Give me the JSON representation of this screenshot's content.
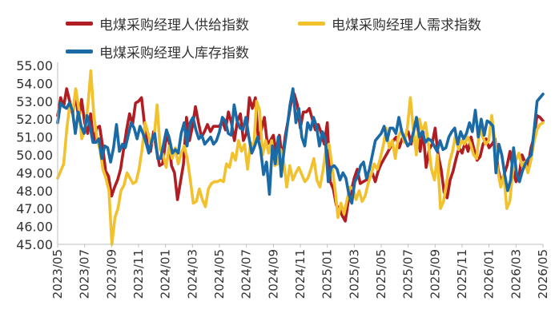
{
  "chart_data": {
    "type": "line",
    "title": "",
    "xlabel": "",
    "ylabel": "",
    "ylim": [
      45.0,
      55.0
    ],
    "yticks": [
      "45.00",
      "46.00",
      "47.00",
      "48.00",
      "49.00",
      "50.00",
      "51.00",
      "52.00",
      "53.00",
      "54.00",
      "55.00"
    ],
    "x_start": "2023-05",
    "x_end": "2026-05",
    "xticks": [
      "2023/05",
      "2023/07",
      "2023/09",
      "2023/11",
      "2024/01",
      "2024/03",
      "2024/05",
      "2024/07",
      "2024/09",
      "2024/11",
      "2025/01",
      "2025/03",
      "2025/05",
      "2025/07",
      "2025/09",
      "2025/11",
      "2026/01",
      "2026/03",
      "2026/05"
    ],
    "grid": false,
    "legend_position": "top",
    "series": [
      {
        "name": "电煤采购经理人供给指数",
        "color": "#b01e23",
        "values": [
          52.2,
          53.2,
          52.7,
          53.7,
          53.0,
          52.3,
          53.4,
          52.0,
          53.1,
          51.8,
          51.2,
          52.3,
          50.7,
          51.5,
          51.6,
          50.5,
          49.1,
          48.8,
          47.7,
          48.2,
          48.6,
          49.2,
          50.3,
          51.4,
          52.3,
          51.7,
          52.9,
          53.0,
          53.2,
          51.7,
          50.5,
          50.2,
          51.3,
          50.3,
          49.4,
          49.5,
          50.7,
          51.1,
          49.4,
          49.0,
          47.5,
          48.5,
          49.5,
          52.1,
          50.8,
          51.6,
          52.7,
          51.8,
          51.0,
          51.3,
          51.7,
          51.3,
          51.6,
          51.6,
          51.6,
          51.9,
          51.4,
          52.4,
          51.8,
          50.8,
          51.9,
          52.3,
          50.8,
          51.2,
          53.2,
          52.6,
          53.2,
          50.8,
          51.4,
          52.1,
          50.6,
          50.8,
          51.1,
          50.1,
          51.1,
          49.8,
          51.1,
          52.0,
          53.0,
          53.4,
          52.8,
          51.5,
          52.4,
          52.4,
          52.6,
          52.0,
          51.4,
          51.7,
          51.2,
          50.6,
          51.8,
          48.5,
          48.1,
          47.2,
          47.0,
          46.6,
          46.3,
          47.4,
          48.0,
          48.7,
          49.2,
          48.4,
          48.5,
          48.6,
          48.7,
          49.0,
          48.5,
          49.1,
          49.5,
          49.8,
          50.1,
          50.4,
          50.8,
          51.0,
          50.4,
          50.9,
          51.1,
          51.3,
          50.6,
          51.5,
          51.9,
          50.2,
          51.3,
          49.3,
          50.3,
          50.6,
          51.5,
          50.0,
          49.2,
          47.9,
          47.6,
          48.6,
          49.1,
          49.8,
          50.4,
          50.1,
          50.7,
          50.2,
          51.0,
          50.3,
          49.7,
          49.9,
          50.6,
          50.9,
          50.4,
          50.6,
          50.9,
          49.2,
          48.5,
          48.9,
          49.4,
          50.2,
          49.2,
          48.5,
          48.8,
          50.0,
          49.6,
          49.4,
          50.4,
          51.0,
          52.2,
          52.1,
          51.9
        ]
      },
      {
        "name": "电煤采购经理人需求指数",
        "color": "#f2c12e",
        "values": [
          48.7,
          49.1,
          49.5,
          51.4,
          52.8,
          52.4,
          53.7,
          52.6,
          50.9,
          51.4,
          52.7,
          54.7,
          52.2,
          51.0,
          50.3,
          49.2,
          48.7,
          48.0,
          45.0,
          46.5,
          47.0,
          48.0,
          48.3,
          49.0,
          48.7,
          48.4,
          48.5,
          49.2,
          50.3,
          51.8,
          51.2,
          50.6,
          51.0,
          52.8,
          50.3,
          50.0,
          49.3,
          50.5,
          49.8,
          50.4,
          49.5,
          50.1,
          50.5,
          49.8,
          48.6,
          47.3,
          47.4,
          48.1,
          47.5,
          47.1,
          48.1,
          48.4,
          48.5,
          48.5,
          48.6,
          48.5,
          49.5,
          49.3,
          50.1,
          49.7,
          50.8,
          50.2,
          50.6,
          49.2,
          50.7,
          50.3,
          53.0,
          52.5,
          50.0,
          50.8,
          50.1,
          50.8,
          49.4,
          49.5,
          50.3,
          49.6,
          48.2,
          49.4,
          48.6,
          49.0,
          49.3,
          48.9,
          48.5,
          48.7,
          49.2,
          49.8,
          48.6,
          48.2,
          49.1,
          50.3,
          50.6,
          49.4,
          48.1,
          46.5,
          47.3,
          46.7,
          47.5,
          48.2,
          48.1,
          47.5,
          48.0,
          47.4,
          47.7,
          48.4,
          48.9,
          49.5,
          49.2,
          49.8,
          50.5,
          51.5,
          50.4,
          50.8,
          49.8,
          51.0,
          51.4,
          50.7,
          51.5,
          53.2,
          51.4,
          50.0,
          52.0,
          51.3,
          51.8,
          50.6,
          49.2,
          48.6,
          50.0,
          47.0,
          47.4,
          48.4,
          49.6,
          50.2,
          51.1,
          50.3,
          50.8,
          50.6,
          51.0,
          50.6,
          50.0,
          49.8,
          51.5,
          51.0,
          50.6,
          50.8,
          52.2,
          50.8,
          49.1,
          48.2,
          48.9,
          47.0,
          47.4,
          49.1,
          49.7,
          50.1,
          49.4,
          49.6,
          49.0,
          49.7,
          50.7,
          51.4,
          51.7,
          51.8
        ]
      },
      {
        "name": "电煤采购经理人库存指数",
        "color": "#1a6aa6",
        "values": [
          51.8,
          52.9,
          52.7,
          52.6,
          52.9,
          52.5,
          51.2,
          52.4,
          51.6,
          51.2,
          52.2,
          51.6,
          50.7,
          50.7,
          50.9,
          49.8,
          50.5,
          50.4,
          49.6,
          50.4,
          51.7,
          50.2,
          50.6,
          50.4,
          51.1,
          51.8,
          51.5,
          50.9,
          51.6,
          51.2,
          50.7,
          50.1,
          50.8,
          51.2,
          49.8,
          49.8,
          50.6,
          51.4,
          50.9,
          50.1,
          50.3,
          50.1,
          51.2,
          51.8,
          50.5,
          51.8,
          52.1,
          51.4,
          50.9,
          51.1,
          50.6,
          50.8,
          51.0,
          50.6,
          50.8,
          51.3,
          52.1,
          51.9,
          51.2,
          51.1,
          52.8,
          51.9,
          51.5,
          51.4,
          52.1,
          51.0,
          50.1,
          50.5,
          51.0,
          50.3,
          48.9,
          49.6,
          47.8,
          50.5,
          49.5,
          51.0,
          48.8,
          50.3,
          51.5,
          52.8,
          53.7,
          51.8,
          52.6,
          51.0,
          50.5,
          51.8,
          51.4,
          52.1,
          51.6,
          50.5,
          51.3,
          50.9,
          48.5,
          49.3,
          49.4,
          49.2,
          48.6,
          49.0,
          48.7,
          47.8,
          47.3,
          48.5,
          48.8,
          49.4,
          49.6,
          48.7,
          49.2,
          50.0,
          50.8,
          51.0,
          51.2,
          51.6,
          50.8,
          51.5,
          51.5,
          51.2,
          52.1,
          51.3,
          50.9,
          50.5,
          50.7,
          51.3,
          52.1,
          51.0,
          51.3,
          50.7,
          50.9,
          50.8,
          50.5,
          50.2,
          50.8,
          50.3,
          50.4,
          51.0,
          51.3,
          51.5,
          50.6,
          51.3,
          50.9,
          51.2,
          51.8,
          51.3,
          52.5,
          51.0,
          52.0,
          51.1,
          51.9,
          51.8,
          51.6,
          49.0,
          50.6,
          50.0,
          48.9,
          48.0,
          48.6,
          50.4,
          49.0,
          48.5,
          49.1,
          49.5,
          49.8,
          50.0,
          51.4,
          53.0,
          53.2,
          53.4
        ]
      }
    ]
  }
}
